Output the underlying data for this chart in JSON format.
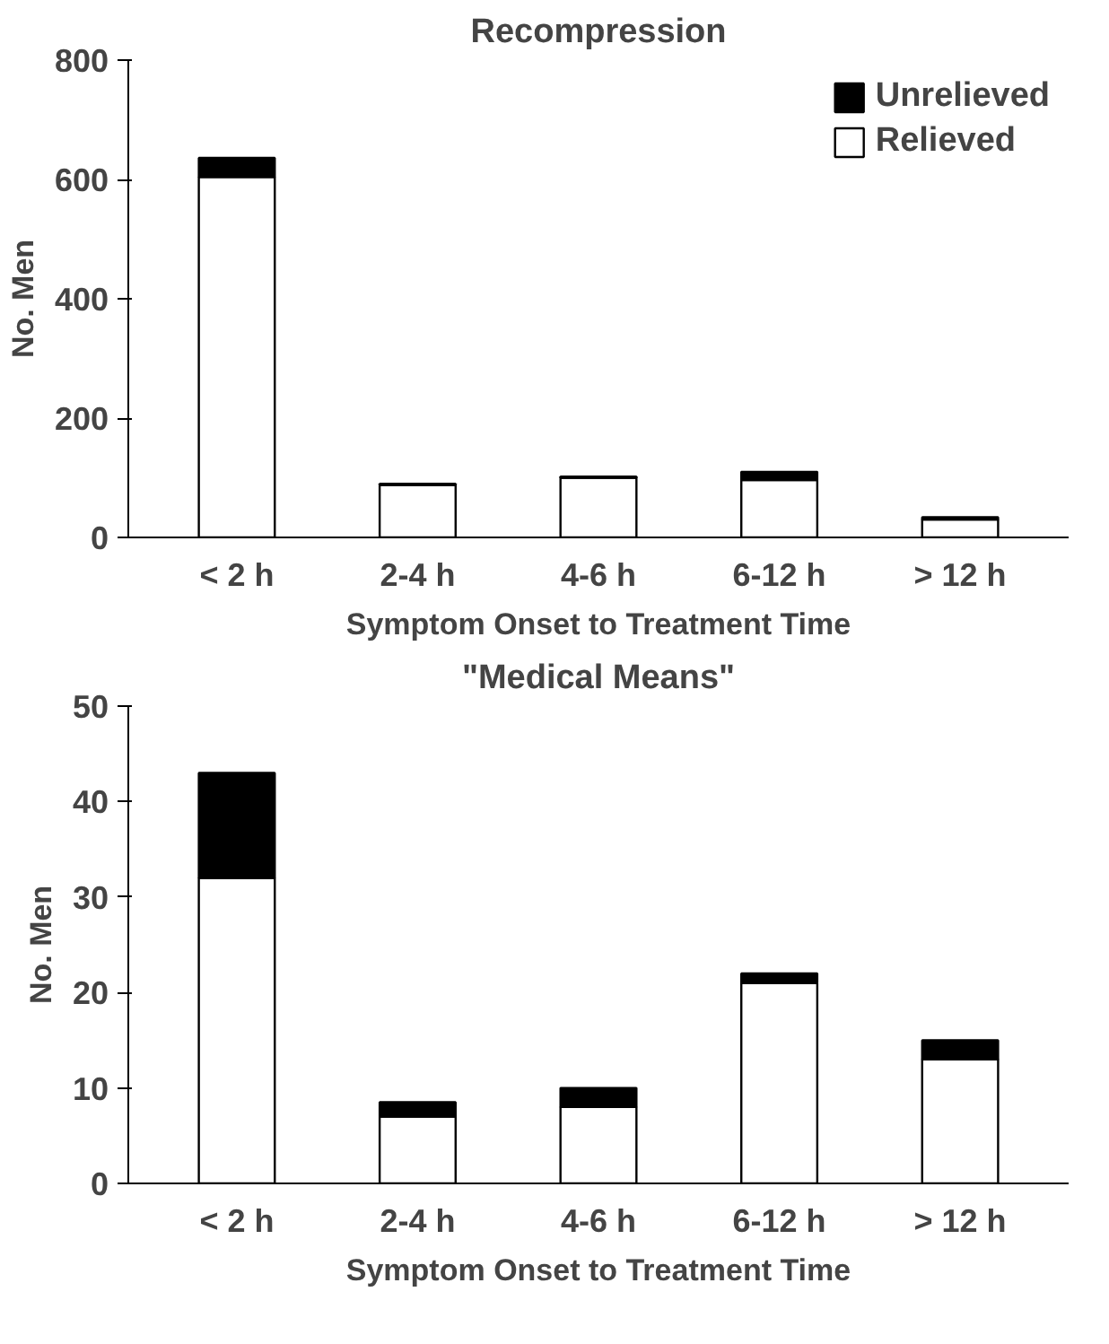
{
  "chart_data": [
    {
      "type": "bar",
      "title": "Recompression",
      "xlabel": "Symptom Onset to Treatment Time",
      "ylabel": "No. Men",
      "stacked": true,
      "categories": [
        "< 2 h",
        "2-4 h",
        "4-6 h",
        "6-12 h",
        "> 12 h"
      ],
      "ylim": [
        0,
        800
      ],
      "yticks": [
        0,
        200,
        400,
        600,
        800
      ],
      "grid": false,
      "legend": "top right",
      "series": [
        {
          "name": "Relieved",
          "color": "#ffffff",
          "values": [
            604,
            88,
            100,
            96,
            30
          ]
        },
        {
          "name": "Unrelieved",
          "color": "#000000",
          "values": [
            32,
            2,
            2,
            14,
            4
          ]
        }
      ]
    },
    {
      "type": "bar",
      "title": "\"Medical Means\"",
      "xlabel": "Symptom Onset to Treatment Time",
      "ylabel": "No. Men",
      "stacked": true,
      "categories": [
        "< 2 h",
        "2-4 h",
        "4-6 h",
        "6-12 h",
        "> 12 h"
      ],
      "ylim": [
        0,
        50
      ],
      "yticks": [
        0,
        10,
        20,
        30,
        40,
        50
      ],
      "grid": false,
      "legend": false,
      "series": [
        {
          "color": "#ffffff",
          "values": [
            32,
            7,
            8,
            21,
            13
          ]
        },
        {
          "color": "#000000",
          "values": [
            11,
            1.5,
            2,
            1,
            2
          ]
        }
      ]
    }
  ]
}
